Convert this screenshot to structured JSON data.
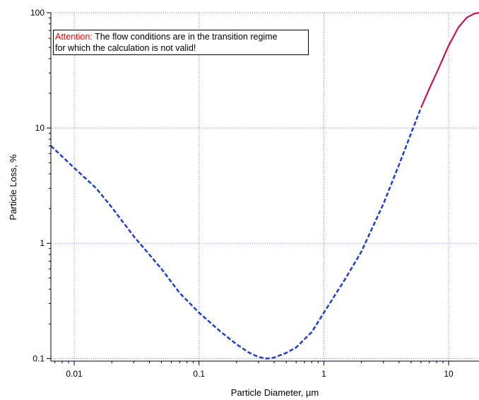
{
  "chart_data": {
    "type": "line",
    "xlabel": "Particle Diameter, µm",
    "ylabel": "Particle Loss, %",
    "xscale": "log",
    "yscale": "log",
    "xlim": [
      0.0065,
      17.5
    ],
    "ylim": [
      0.095,
      100
    ],
    "xticks": [
      {
        "value": 0.01,
        "label": "0.01"
      },
      {
        "value": 0.1,
        "label": "0.1"
      },
      {
        "value": 1,
        "label": "1"
      },
      {
        "value": 10,
        "label": "10"
      }
    ],
    "yticks": [
      {
        "value": 0.1,
        "label": "0.1"
      },
      {
        "value": 1,
        "label": "1"
      },
      {
        "value": 10,
        "label": "10"
      },
      {
        "value": 100,
        "label": "100"
      }
    ],
    "grid": true,
    "grid_color": "#7b7bff",
    "series": [
      {
        "style": "dashed",
        "color": "#1f3fc8",
        "x": [
          0.0065,
          0.01,
          0.015,
          0.02,
          0.03,
          0.05,
          0.07,
          0.1,
          0.15,
          0.2,
          0.25,
          0.3,
          0.35,
          0.4,
          0.5,
          0.6,
          0.8,
          1.0,
          1.5,
          2.0,
          3.0,
          4.0,
          5.0,
          6.0
        ],
        "y": [
          7.0,
          4.5,
          3.0,
          2.05,
          1.15,
          0.6,
          0.37,
          0.25,
          0.17,
          0.133,
          0.113,
          0.103,
          0.1,
          0.102,
          0.112,
          0.125,
          0.17,
          0.25,
          0.5,
          0.85,
          2.2,
          4.8,
          9.0,
          15.0
        ]
      },
      {
        "style": "solid",
        "color": "#c8144b",
        "x": [
          6.0,
          7.0,
          8.0,
          10.0,
          12.0,
          14.0,
          16.0,
          17.5
        ],
        "y": [
          15.0,
          22.0,
          30.0,
          52.0,
          75.0,
          91.0,
          98.0,
          100.0
        ]
      }
    ],
    "annotations": [
      {
        "prefix": "Attention:",
        "text": " The flow conditions are in the transition regime",
        "line2": "for which the calculation is not valid!",
        "prefix_color": "#ff0000"
      }
    ]
  }
}
